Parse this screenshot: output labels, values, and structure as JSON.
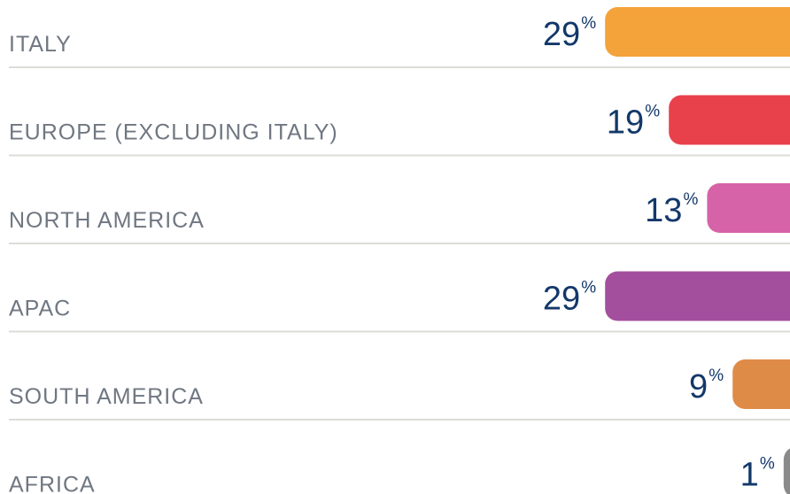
{
  "chart_data": {
    "type": "bar",
    "orientation": "horizontal",
    "unit": "%",
    "categories": [
      "ITALY",
      "EUROPE (EXCLUDING ITALY)",
      "NORTH AMERICA",
      "APAC",
      "SOUTH AMERICA",
      "AFRICA"
    ],
    "values": [
      29,
      19,
      13,
      29,
      9,
      1
    ],
    "colors": [
      "#f4a23a",
      "#e9414b",
      "#d663a8",
      "#a34f9e",
      "#df8b48",
      "#8a8a8a"
    ]
  }
}
